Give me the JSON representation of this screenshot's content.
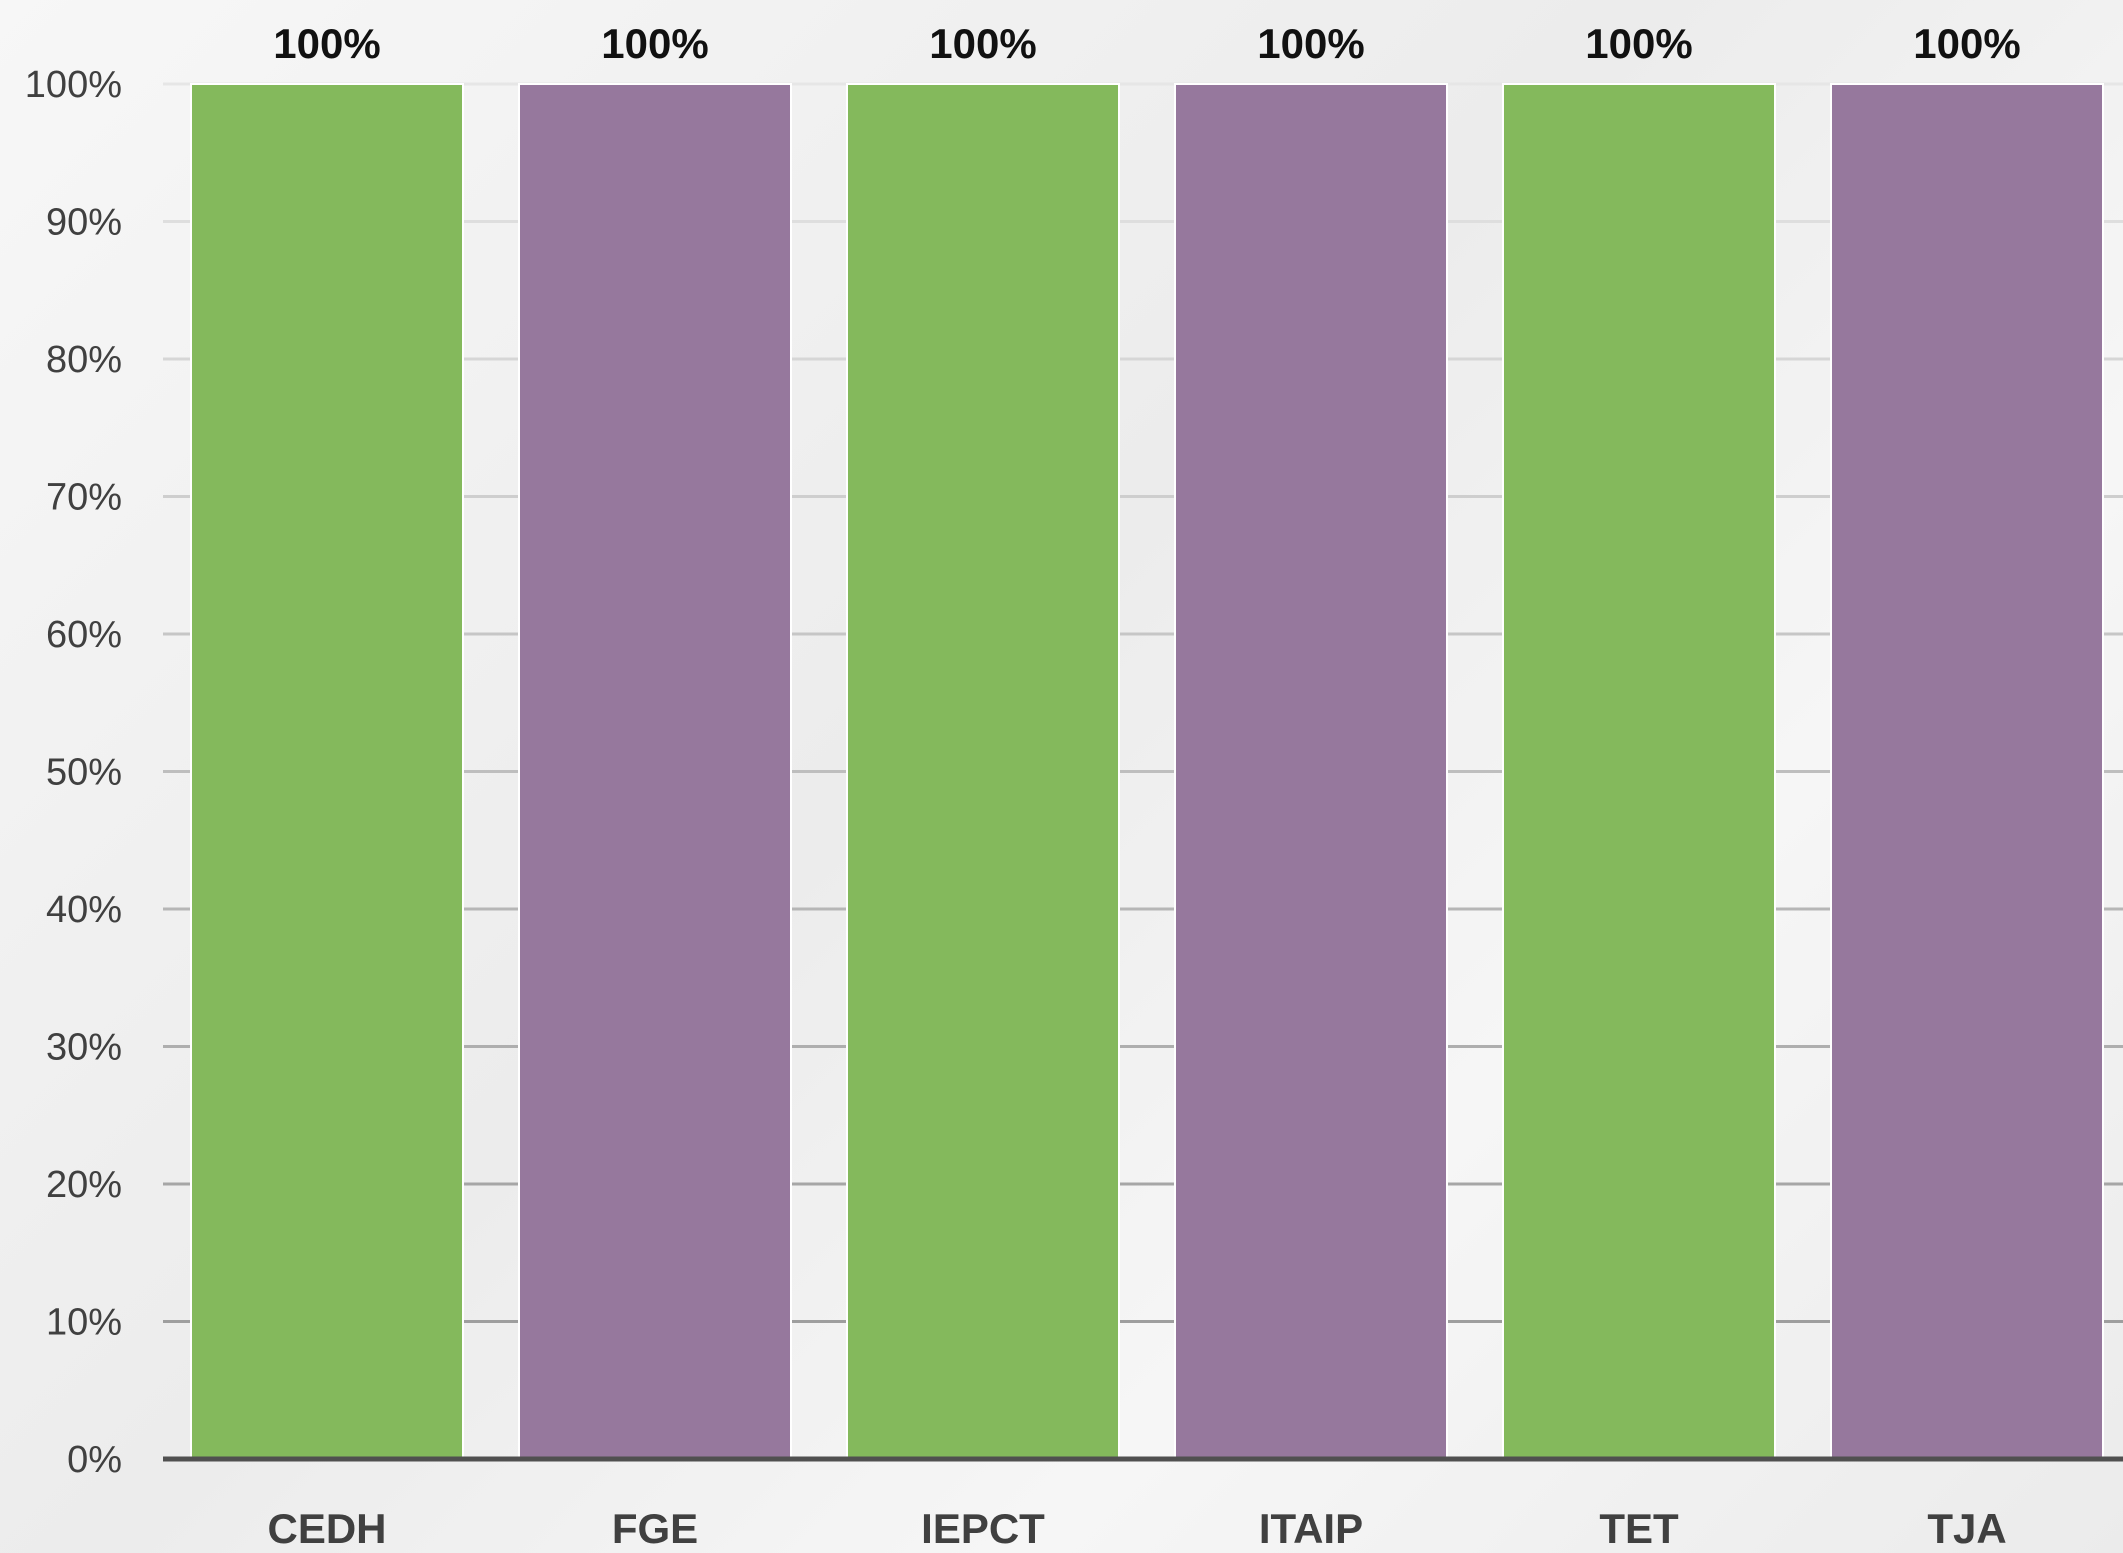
{
  "chart_data": {
    "type": "bar",
    "title": "",
    "xlabel": "",
    "ylabel": "",
    "categories": [
      "CEDH",
      "FGE",
      "IEPCT",
      "ITAIP",
      "TET",
      "TJA"
    ],
    "values": [
      100,
      100,
      100,
      100,
      100,
      100
    ],
    "data_labels": [
      "100%",
      "100%",
      "100%",
      "100%",
      "100%",
      "100%"
    ],
    "bar_colors": [
      "#84b95c",
      "#96789d",
      "#84b95c",
      "#96789d",
      "#84b95c",
      "#96789d"
    ],
    "ylim": [
      0,
      100
    ],
    "y_ticks": [
      0,
      10,
      20,
      30,
      40,
      50,
      60,
      70,
      80,
      90,
      100
    ],
    "y_tick_labels": [
      "0%",
      "10%",
      "20%",
      "30%",
      "40%",
      "50%",
      "60%",
      "70%",
      "80%",
      "90%",
      "100%"
    ],
    "grid": true,
    "legend": "none"
  }
}
